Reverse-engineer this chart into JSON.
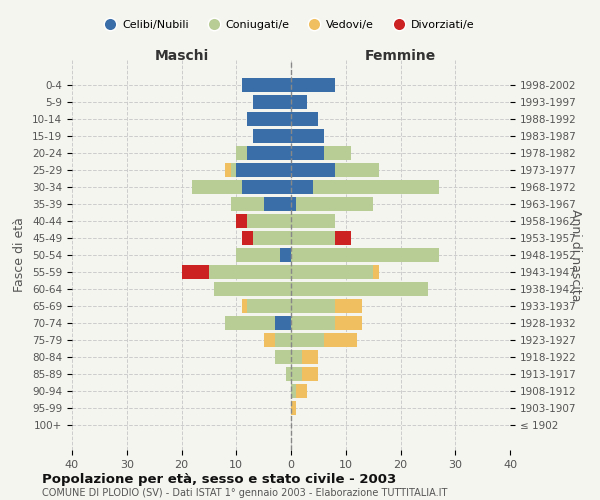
{
  "age_groups": [
    "100+",
    "95-99",
    "90-94",
    "85-89",
    "80-84",
    "75-79",
    "70-74",
    "65-69",
    "60-64",
    "55-59",
    "50-54",
    "45-49",
    "40-44",
    "35-39",
    "30-34",
    "25-29",
    "20-24",
    "15-19",
    "10-14",
    "5-9",
    "0-4"
  ],
  "birth_years": [
    "≤ 1902",
    "1903-1907",
    "1908-1912",
    "1913-1917",
    "1918-1922",
    "1923-1927",
    "1928-1932",
    "1933-1937",
    "1938-1942",
    "1943-1947",
    "1948-1952",
    "1953-1957",
    "1958-1962",
    "1963-1967",
    "1968-1972",
    "1973-1977",
    "1978-1982",
    "1983-1987",
    "1988-1992",
    "1993-1997",
    "1998-2002"
  ],
  "males": {
    "celibi": [
      0,
      0,
      0,
      0,
      0,
      0,
      3,
      0,
      0,
      0,
      2,
      0,
      0,
      5,
      9,
      10,
      8,
      7,
      8,
      7,
      9
    ],
    "coniugati": [
      0,
      0,
      0,
      1,
      3,
      3,
      9,
      8,
      14,
      15,
      8,
      7,
      8,
      6,
      9,
      1,
      2,
      0,
      0,
      0,
      0
    ],
    "vedovi": [
      0,
      0,
      0,
      0,
      0,
      2,
      0,
      1,
      0,
      0,
      0,
      0,
      0,
      0,
      0,
      1,
      0,
      0,
      0,
      0,
      0
    ],
    "divorziati": [
      0,
      0,
      0,
      0,
      0,
      0,
      0,
      0,
      0,
      5,
      0,
      2,
      2,
      0,
      0,
      0,
      0,
      0,
      0,
      0,
      0
    ]
  },
  "females": {
    "nubili": [
      0,
      0,
      0,
      0,
      0,
      0,
      0,
      0,
      0,
      0,
      0,
      0,
      0,
      1,
      4,
      8,
      6,
      6,
      5,
      3,
      8
    ],
    "coniugate": [
      0,
      0,
      1,
      2,
      2,
      6,
      8,
      8,
      25,
      15,
      27,
      8,
      8,
      14,
      23,
      8,
      5,
      0,
      0,
      0,
      0
    ],
    "vedove": [
      0,
      1,
      2,
      3,
      3,
      6,
      5,
      5,
      0,
      1,
      0,
      0,
      0,
      0,
      0,
      0,
      0,
      0,
      0,
      0,
      0
    ],
    "divorziate": [
      0,
      0,
      0,
      0,
      0,
      0,
      0,
      0,
      0,
      0,
      0,
      3,
      0,
      0,
      0,
      0,
      0,
      0,
      0,
      0,
      0
    ]
  },
  "colors": {
    "celibi_nubili": "#3a6ea8",
    "coniugati": "#b8cc96",
    "vedovi": "#f0c060",
    "divorziati": "#cc2222"
  },
  "xlim": 40,
  "title": "Popolazione per età, sesso e stato civile - 2003",
  "subtitle": "COMUNE DI PLODIO (SV) - Dati ISTAT 1° gennaio 2003 - Elaborazione TUTTITALIA.IT",
  "ylabel_left": "Fasce di età",
  "ylabel_right": "Anni di nascita",
  "xlabel_left": "Maschi",
  "xlabel_right": "Femmine",
  "background_color": "#f5f5f0",
  "grid_color": "#cccccc"
}
